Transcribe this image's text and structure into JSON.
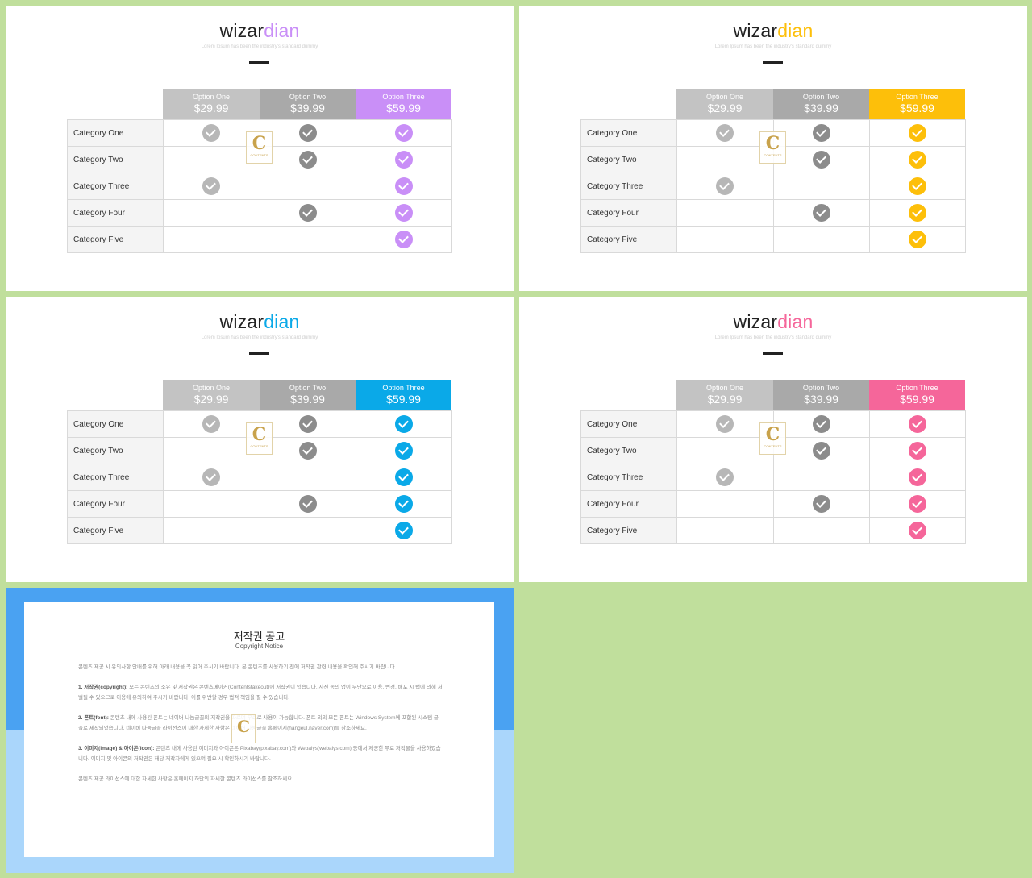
{
  "slides": [
    {
      "brand_black": "wizar",
      "brand_color": "dian",
      "accent": "#c98ff7",
      "subtitle": "Lorem Ipsum has been the industry's standard dummy",
      "options": [
        {
          "name": "Option One",
          "price": "$29.99"
        },
        {
          "name": "Option Two",
          "price": "$39.99"
        },
        {
          "name": "Option Three",
          "price": "$59.99"
        }
      ],
      "rows": [
        {
          "label": "Category One",
          "checks": [
            true,
            true,
            true
          ]
        },
        {
          "label": "Category Two",
          "checks": [
            false,
            true,
            true
          ]
        },
        {
          "label": "Category Three",
          "checks": [
            true,
            false,
            true
          ]
        },
        {
          "label": "Category Four",
          "checks": [
            false,
            true,
            true
          ]
        },
        {
          "label": "Category Five",
          "checks": [
            false,
            false,
            true
          ]
        }
      ],
      "watermark": {
        "letter": "C",
        "text": "CONTENTS"
      }
    },
    {
      "brand_black": "wizar",
      "brand_color": "dian",
      "accent": "#fdbf0a",
      "subtitle": "Lorem Ipsum has been the industry's standard dummy",
      "options": [
        {
          "name": "Option One",
          "price": "$29.99"
        },
        {
          "name": "Option Two",
          "price": "$39.99"
        },
        {
          "name": "Option Three",
          "price": "$59.99"
        }
      ],
      "rows": [
        {
          "label": "Category One",
          "checks": [
            true,
            true,
            true
          ]
        },
        {
          "label": "Category Two",
          "checks": [
            false,
            true,
            true
          ]
        },
        {
          "label": "Category Three",
          "checks": [
            true,
            false,
            true
          ]
        },
        {
          "label": "Category Four",
          "checks": [
            false,
            true,
            true
          ]
        },
        {
          "label": "Category Five",
          "checks": [
            false,
            false,
            true
          ]
        }
      ],
      "watermark": {
        "letter": "C",
        "text": "CONTENTS"
      }
    },
    {
      "brand_black": "wizar",
      "brand_color": "dian",
      "accent": "#0aa9e8",
      "subtitle": "Lorem Ipsum has been the industry's standard dummy",
      "options": [
        {
          "name": "Option One",
          "price": "$29.99"
        },
        {
          "name": "Option Two",
          "price": "$39.99"
        },
        {
          "name": "Option Three",
          "price": "$59.99"
        }
      ],
      "rows": [
        {
          "label": "Category One",
          "checks": [
            true,
            true,
            true
          ]
        },
        {
          "label": "Category Two",
          "checks": [
            false,
            true,
            true
          ]
        },
        {
          "label": "Category Three",
          "checks": [
            true,
            false,
            true
          ]
        },
        {
          "label": "Category Four",
          "checks": [
            false,
            true,
            true
          ]
        },
        {
          "label": "Category Five",
          "checks": [
            false,
            false,
            true
          ]
        }
      ],
      "watermark": {
        "letter": "C",
        "text": "CONTENTS"
      }
    },
    {
      "brand_black": "wizar",
      "brand_color": "dian",
      "accent": "#f5669a",
      "subtitle": "Lorem Ipsum has been the industry's standard dummy",
      "options": [
        {
          "name": "Option One",
          "price": "$29.99"
        },
        {
          "name": "Option Two",
          "price": "$39.99"
        },
        {
          "name": "Option Three",
          "price": "$59.99"
        }
      ],
      "rows": [
        {
          "label": "Category One",
          "checks": [
            true,
            true,
            true
          ]
        },
        {
          "label": "Category Two",
          "checks": [
            false,
            true,
            true
          ]
        },
        {
          "label": "Category Three",
          "checks": [
            true,
            false,
            true
          ]
        },
        {
          "label": "Category Four",
          "checks": [
            false,
            true,
            true
          ]
        },
        {
          "label": "Category Five",
          "checks": [
            false,
            false,
            true
          ]
        }
      ],
      "watermark": {
        "letter": "C",
        "text": "CONTENTS"
      }
    }
  ],
  "notice": {
    "title": "저작권 공고",
    "subtitle": "Copyright Notice",
    "intro": "콘텐츠 제공 시 유의사항 안내를 위해 아래 내용을 꼭 읽어 주시기 바랍니다. 본 콘텐츠를 사용하기 전에 저작권 관련 내용을 확인해 주시기 바랍니다.",
    "p1_head": "1. 저작권(copyright):",
    "p1_body": " 모든 콘텐츠의 소유 및 저작권은 콘텐츠메이커(Contentstakeout)에 저작권이 있습니다. 사전 동의 없이 무단으로 이용, 변경, 배포 시 법에 의해 처벌될 수 있으므로 이용에 유의하여 주시기 바랍니다. 이를 위반할 경우 법적 책임을 질 수 있습니다.",
    "p2_head": "2. 폰트(font):",
    "p2_body": " 콘텐츠 내에 사용된 폰트는 네이버 나눔글꼴의 저작권을 따르며 무료로 사용이 가능합니다. 폰트 외의 모든 폰트는 Windows System에 포함된 시스템 글꼴로 제작되었습니다. 네이버 나눔글꼴 라이선스에 대한 자세한 사항은 네이버 나눔글꼴 홈페이지(hangeul.naver.com)를 참조하세요.",
    "p3_head": "3. 이미지(image) & 아이콘(icon):",
    "p3_body": " 콘텐츠 내에 사용된 이미지와 아이콘은 Pixabay(pixabay.com)와 Webalys(webalys.com) 등에서 제공한 무료 저작물을 사용하였습니다. 이미지 및 아이콘의 저작권은 해당 제작자에게 있으며 필요 시 확인하시기 바랍니다.",
    "outro": "콘텐츠 제공 라이선스에 대한 자세한 사항은 홈페이지 하단의 자세한 콘텐츠 라이선스를 참조하세요.",
    "watermark": {
      "letter": "C"
    }
  }
}
